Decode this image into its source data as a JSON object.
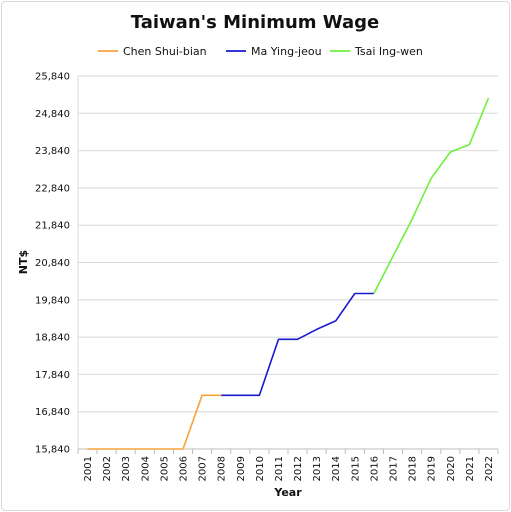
{
  "chart_data": {
    "type": "line",
    "title": "Taiwan's Minimum Wage",
    "xlabel": "Year",
    "ylabel": "NT$",
    "ylim": [
      15840,
      25840
    ],
    "yticks": [
      "15,840",
      "16,840",
      "17,840",
      "18,840",
      "19,840",
      "20,840",
      "21,840",
      "22,840",
      "23,840",
      "24,840",
      "25,840"
    ],
    "categories": [
      "2001",
      "2002",
      "2003",
      "2004",
      "2005",
      "2006",
      "2007",
      "2008",
      "2009",
      "2010",
      "2011",
      "2012",
      "2013",
      "2014",
      "2015",
      "2016",
      "2017",
      "2018",
      "2019",
      "2020",
      "2021",
      "2022"
    ],
    "grid": "horizontal",
    "legend_position": "top",
    "series": [
      {
        "name": "Chen Shui-bian",
        "color": "#f7a33a",
        "points": [
          [
            "2001",
            15840
          ],
          [
            "2002",
            15840
          ],
          [
            "2003",
            15840
          ],
          [
            "2004",
            15840
          ],
          [
            "2005",
            15840
          ],
          [
            "2006",
            15840
          ],
          [
            "2007",
            17280
          ],
          [
            "2008",
            17280
          ]
        ]
      },
      {
        "name": "Ma Ying-jeou",
        "color": "#1a1ad1",
        "points": [
          [
            "2008",
            17280
          ],
          [
            "2009",
            17280
          ],
          [
            "2010",
            17280
          ],
          [
            "2011",
            18780
          ],
          [
            "2012",
            18780
          ],
          [
            "2013",
            19047
          ],
          [
            "2014",
            19273
          ],
          [
            "2015",
            20008
          ],
          [
            "2016",
            20008
          ]
        ]
      },
      {
        "name": "Tsai Ing-wen",
        "color": "#6ef03c",
        "points": [
          [
            "2016",
            20008
          ],
          [
            "2017",
            21009
          ],
          [
            "2018",
            22000
          ],
          [
            "2019",
            23100
          ],
          [
            "2020",
            23800
          ],
          [
            "2021",
            24000
          ],
          [
            "2022",
            25250
          ]
        ]
      }
    ]
  }
}
